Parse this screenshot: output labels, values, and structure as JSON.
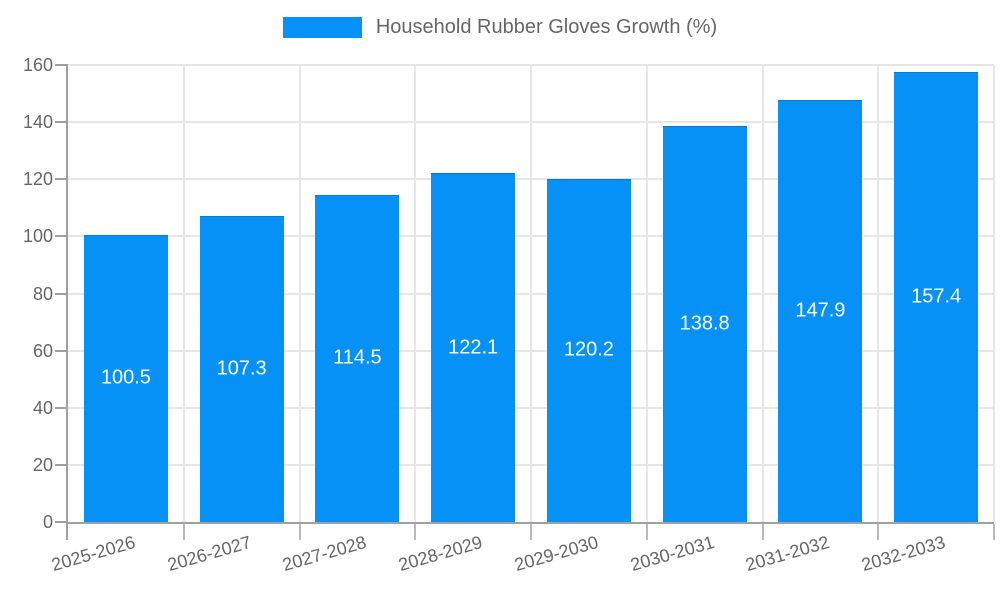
{
  "chart_data": {
    "type": "bar",
    "title": "Household Rubber Gloves Growth (%)",
    "categories": [
      "2025-2026",
      "2026-2027",
      "2027-2028",
      "2028-2029",
      "2029-2030",
      "2030-2031",
      "2031-2032",
      "2032-2033"
    ],
    "values": [
      100.5,
      107.3,
      114.5,
      122.1,
      120.2,
      138.8,
      147.9,
      157.4
    ],
    "xlabel": "",
    "ylabel": "",
    "ylim": [
      0,
      160
    ],
    "yticks": [
      0,
      20,
      40,
      60,
      80,
      100,
      120,
      140,
      160
    ],
    "grid": true,
    "legend_position": "top-center",
    "value_labels": "centered-inside-bars",
    "colors": {
      "bar": "#0591f5",
      "grid": "#e6e6e6",
      "axis_line": "#a0a0a0",
      "axis_text": "#666666",
      "legend_text": "#666666",
      "value_text": "#ffffff"
    }
  }
}
